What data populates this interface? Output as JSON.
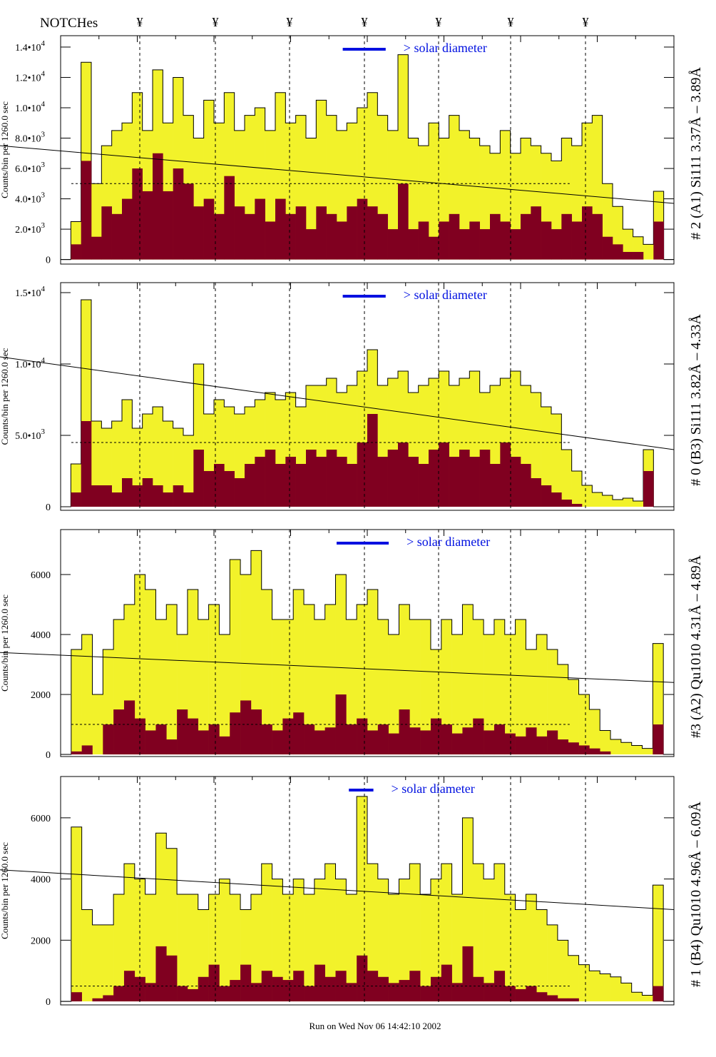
{
  "header": {
    "notches_label": "NOTCHes",
    "notch_symbol": "¥",
    "notch_count": 7
  },
  "footer": {
    "run_text": "Run on Wed Nov 06 14:42:10 2002"
  },
  "colors": {
    "yellow": "#f2f22a",
    "dark": "#800020",
    "legend_bar": "#0010e0",
    "line": "#000000"
  },
  "legend": {
    "label": "> solar diameter"
  },
  "chart_data": [
    {
      "type": "bar",
      "title": "# 2 (A1) Si111  3.37Å – 3.89Å",
      "ylabel": "Counts/bin per   1260.0 sec",
      "ylim": [
        -300,
        14750
      ],
      "yticks": [
        {
          "value": 0,
          "base": "0",
          "exp": ""
        },
        {
          "value": 2000,
          "base": "2.0•10",
          "exp": "3"
        },
        {
          "value": 4000,
          "base": "4.0•10",
          "exp": "3"
        },
        {
          "value": 6000,
          "base": "6.0•10",
          "exp": "3"
        },
        {
          "value": 8000,
          "base": "8.0•10",
          "exp": "3"
        },
        {
          "value": 10000,
          "base": "1.0•10",
          "exp": "4"
        },
        {
          "value": 12000,
          "base": "1.2•10",
          "exp": "4"
        },
        {
          "value": 14000,
          "base": "1.4•10",
          "exp": "4"
        }
      ],
      "fit_line": [
        7500,
        3700
      ],
      "dashed_level": 5000,
      "series": [
        {
          "name": "total",
          "values": [
            0,
            2500,
            13000,
            5000,
            7500,
            8500,
            9000,
            11000,
            8500,
            12500,
            9000,
            12000,
            9500,
            8000,
            10500,
            9000,
            11000,
            8500,
            9500,
            10000,
            8500,
            11000,
            9000,
            9500,
            8000,
            10500,
            9500,
            8500,
            9000,
            10000,
            11000,
            9500,
            8500,
            13500,
            8000,
            7500,
            9000,
            8000,
            9500,
            8500,
            8000,
            7500,
            7000,
            8500,
            7000,
            8000,
            7500,
            7000,
            6500,
            8000,
            7500,
            9000,
            9500,
            5000,
            3500,
            2000,
            1500,
            1000,
            4500,
            0
          ]
        },
        {
          "name": "dark",
          "values": [
            0,
            1000,
            6500,
            1500,
            3500,
            3000,
            4000,
            6000,
            4500,
            7000,
            4500,
            6000,
            5000,
            3500,
            4000,
            3000,
            5500,
            3500,
            3000,
            4000,
            2500,
            4000,
            3000,
            3500,
            2000,
            3500,
            3000,
            2500,
            3500,
            4000,
            3500,
            3000,
            2000,
            5000,
            2000,
            2500,
            1500,
            2500,
            3000,
            2000,
            2500,
            2000,
            3000,
            2500,
            2000,
            3000,
            3500,
            2500,
            2000,
            3000,
            2500,
            3500,
            3000,
            1500,
            1000,
            500,
            500,
            0,
            2500,
            0
          ]
        }
      ],
      "legend_bar": [
        0.46,
        0.53
      ]
    },
    {
      "type": "bar",
      "title": "# 0 (B3) Si111  3.82Å – 4.33Å",
      "ylabel": "Counts/bin per   1260.0 sec",
      "ylim": [
        -250,
        15700
      ],
      "yticks": [
        {
          "value": 0,
          "base": "0",
          "exp": ""
        },
        {
          "value": 5000,
          "base": "5.0•10",
          "exp": "3"
        },
        {
          "value": 10000,
          "base": "1.0•10",
          "exp": "4"
        },
        {
          "value": 15000,
          "base": "1.5•10",
          "exp": "4"
        }
      ],
      "fit_line": [
        10500,
        4000
      ],
      "dashed_level": 4500,
      "series": [
        {
          "name": "total",
          "values": [
            0,
            3000,
            14500,
            6000,
            5500,
            6000,
            7500,
            5500,
            6500,
            7000,
            6000,
            5500,
            5000,
            10000,
            6500,
            7500,
            7000,
            6500,
            7000,
            7500,
            8000,
            7500,
            8000,
            7000,
            8500,
            8500,
            9000,
            8000,
            8500,
            9500,
            11000,
            8500,
            9000,
            9500,
            8000,
            8500,
            9000,
            9500,
            8500,
            9000,
            9500,
            8000,
            8500,
            9000,
            9500,
            8500,
            8000,
            7000,
            6500,
            4000,
            2500,
            1500,
            1000,
            800,
            500,
            600,
            400,
            4000,
            0,
            0
          ]
        },
        {
          "name": "dark",
          "values": [
            0,
            1000,
            6000,
            1500,
            1500,
            1000,
            2000,
            1500,
            2000,
            1500,
            1000,
            1500,
            1000,
            4000,
            2500,
            3000,
            2500,
            2000,
            3000,
            3500,
            4000,
            3000,
            3500,
            3000,
            4000,
            3500,
            4000,
            3500,
            3000,
            4500,
            6500,
            3500,
            4000,
            4500,
            3500,
            3000,
            4000,
            4500,
            3500,
            4000,
            3500,
            4000,
            3000,
            4500,
            3500,
            3000,
            2000,
            1500,
            1000,
            500,
            200,
            0,
            0,
            0,
            0,
            0,
            0,
            2500,
            0,
            0
          ]
        }
      ],
      "legend_bar": [
        0.46,
        0.53
      ]
    },
    {
      "type": "bar",
      "title": "#3 (A2) Qu1010  4.31Å – 4.89Å",
      "ylabel": "Counts/bin per   1260.0 sec",
      "ylim": [
        -70,
        7500
      ],
      "yticks": [
        {
          "value": 0,
          "base": "0",
          "exp": ""
        },
        {
          "value": 2000,
          "base": "2000",
          "exp": ""
        },
        {
          "value": 4000,
          "base": "4000",
          "exp": ""
        },
        {
          "value": 6000,
          "base": "6000",
          "exp": ""
        }
      ],
      "fit_line": [
        3400,
        2400
      ],
      "dashed_level": 1000,
      "series": [
        {
          "name": "total",
          "values": [
            0,
            3500,
            4000,
            2000,
            3500,
            4500,
            5000,
            6000,
            5500,
            4500,
            5000,
            4000,
            5500,
            4500,
            5000,
            4000,
            6500,
            6000,
            6800,
            5500,
            4500,
            4500,
            5500,
            5000,
            4500,
            5000,
            6000,
            4500,
            5000,
            5500,
            4500,
            4000,
            5000,
            4500,
            4500,
            3500,
            4500,
            4000,
            5000,
            4500,
            4000,
            4500,
            4000,
            4500,
            3500,
            4000,
            3500,
            3000,
            2500,
            2000,
            1500,
            800,
            500,
            400,
            300,
            200,
            3700,
            0
          ]
        },
        {
          "name": "dark",
          "values": [
            0,
            100,
            300,
            0,
            1000,
            1500,
            1800,
            1200,
            800,
            1000,
            500,
            1500,
            1200,
            800,
            1000,
            600,
            1400,
            1800,
            1500,
            1000,
            800,
            1200,
            1400,
            1000,
            800,
            900,
            2000,
            1000,
            1200,
            800,
            1000,
            700,
            1500,
            900,
            800,
            1200,
            1000,
            700,
            900,
            1200,
            800,
            1000,
            700,
            600,
            900,
            600,
            800,
            500,
            400,
            300,
            200,
            100,
            0,
            0,
            0,
            0,
            1000,
            0
          ]
        }
      ],
      "legend_bar": [
        0.45,
        0.535
      ]
    },
    {
      "type": "bar",
      "title": "# 1 (B4) Qu1010 4.96Å – 6.09Å",
      "ylabel": "Counts/bin per   1260.0 sec",
      "ylim": [
        -115,
        7350
      ],
      "yticks": [
        {
          "value": 0,
          "base": "0",
          "exp": ""
        },
        {
          "value": 2000,
          "base": "2000",
          "exp": ""
        },
        {
          "value": 4000,
          "base": "4000",
          "exp": ""
        },
        {
          "value": 6000,
          "base": "6000",
          "exp": ""
        }
      ],
      "fit_line": [
        4300,
        3000
      ],
      "dashed_level": 500,
      "series": [
        {
          "name": "total",
          "values": [
            0,
            5700,
            3000,
            2500,
            2500,
            3500,
            4500,
            4000,
            3500,
            5500,
            5000,
            3500,
            3500,
            3000,
            3500,
            4000,
            3500,
            3000,
            3500,
            4500,
            4000,
            3500,
            4000,
            3500,
            4000,
            4500,
            4000,
            3500,
            6700,
            4500,
            4000,
            3500,
            4000,
            4500,
            3500,
            4000,
            4500,
            3500,
            6000,
            4500,
            4000,
            4500,
            3500,
            3000,
            3500,
            3000,
            2500,
            2000,
            1500,
            1200,
            1000,
            900,
            800,
            600,
            300,
            200,
            3800,
            0
          ]
        },
        {
          "name": "dark",
          "values": [
            0,
            300,
            0,
            100,
            200,
            500,
            1000,
            800,
            600,
            1800,
            1500,
            500,
            400,
            800,
            1200,
            500,
            700,
            1200,
            600,
            1000,
            800,
            700,
            1000,
            500,
            1200,
            800,
            1000,
            600,
            1500,
            1000,
            800,
            600,
            700,
            1000,
            500,
            800,
            1200,
            600,
            1800,
            800,
            600,
            1000,
            500,
            400,
            500,
            300,
            200,
            100,
            100,
            0,
            0,
            0,
            0,
            0,
            0,
            0,
            500,
            0
          ]
        }
      ],
      "legend_bar": [
        0.47,
        0.51
      ]
    }
  ]
}
